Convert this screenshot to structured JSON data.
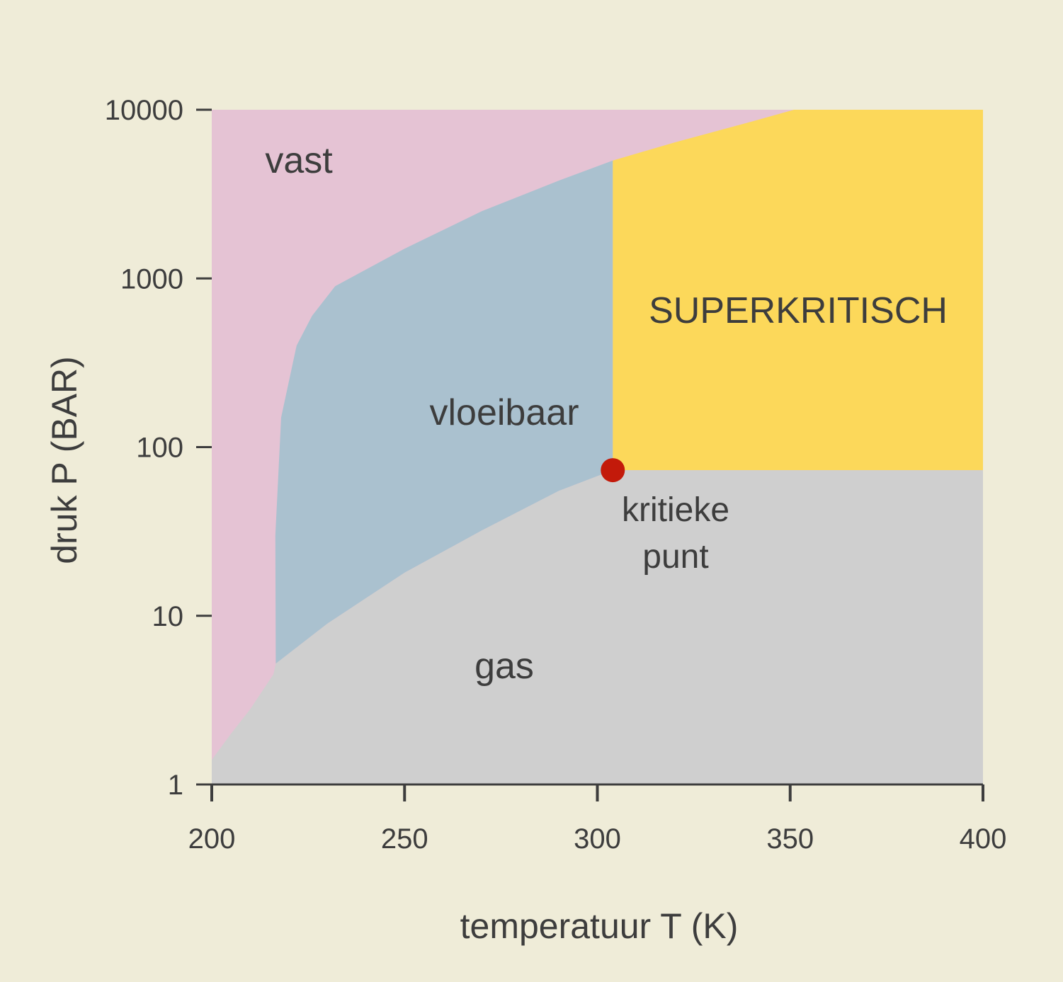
{
  "chart_data": {
    "type": "area",
    "title": "",
    "xlabel": "temperatuur T (K)",
    "ylabel": "druk P (BAR)",
    "xlim": [
      200,
      400
    ],
    "ylim": [
      1,
      10000
    ],
    "yscale": "log",
    "x_ticks": [
      200,
      250,
      300,
      350,
      400
    ],
    "x_tick_labels": [
      "200",
      "250",
      "300",
      "350",
      "400"
    ],
    "y_ticks": [
      1,
      10,
      100,
      1000,
      10000
    ],
    "y_tick_labels": [
      "1",
      "10",
      "100",
      "1000",
      "10000"
    ],
    "regions": [
      {
        "name": "vast",
        "color": "#e5c3d4"
      },
      {
        "name": "vloeibaar",
        "color": "#aac1cf"
      },
      {
        "name": "SUPERKRITISCH",
        "color": "#fcd85a"
      },
      {
        "name": "gas",
        "color": "#cfcfcf"
      }
    ],
    "boundaries": {
      "sublimation": [
        [
          200,
          1.4
        ],
        [
          205,
          2.0
        ],
        [
          210,
          2.8
        ],
        [
          216,
          4.5
        ],
        [
          216.6,
          5.2
        ]
      ],
      "vaporization": [
        [
          216.6,
          5.2
        ],
        [
          230,
          9
        ],
        [
          250,
          18
        ],
        [
          270,
          32
        ],
        [
          290,
          55
        ],
        [
          304,
          73
        ]
      ],
      "melting": [
        [
          216.6,
          5.2
        ],
        [
          216.5,
          30
        ],
        [
          218,
          150
        ],
        [
          222,
          400
        ],
        [
          226,
          600
        ],
        [
          232,
          900
        ],
        [
          250,
          1500
        ],
        [
          270,
          2500
        ],
        [
          290,
          3800
        ],
        [
          304,
          5000
        ],
        [
          320,
          6400
        ],
        [
          340,
          8500
        ],
        [
          351,
          10000
        ]
      ]
    },
    "critical_point": {
      "x": 304,
      "y": 73,
      "label_line1": "kritieke",
      "label_line2": "punt",
      "color": "#c31a0a"
    },
    "grid": false,
    "legend": "none"
  },
  "labels": {
    "solid": "vast",
    "liquid": "vloeibaar",
    "supercritical": "SUPERKRITISCH",
    "gas": "gas"
  },
  "colors": {
    "background": "#efecd8",
    "text": "#3d3d3d",
    "axis": "#3d3d3d"
  }
}
